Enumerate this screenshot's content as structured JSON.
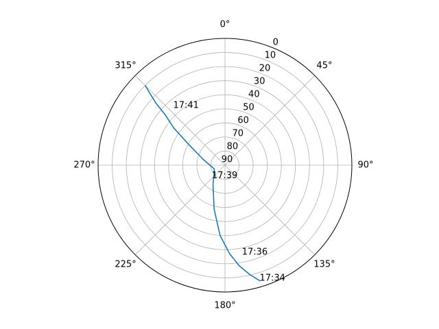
{
  "chart_data": {
    "type": "line",
    "projection": "polar",
    "theta_zero_location": "N",
    "theta_direction": "clockwise",
    "radial_axis": {
      "label": "",
      "inverted": true,
      "range": [
        0,
        90
      ],
      "ticks": [
        0,
        10,
        20,
        30,
        40,
        50,
        60,
        70,
        80,
        90
      ],
      "tick_labels": [
        "0",
        "10",
        "20",
        "30",
        "40",
        "50",
        "60",
        "70",
        "80",
        "90"
      ]
    },
    "angular_axis": {
      "ticks": [
        0,
        45,
        90,
        135,
        180,
        225,
        270,
        315
      ],
      "tick_labels": [
        "0°",
        "45°",
        "90°",
        "135°",
        "180°",
        "225°",
        "270°",
        "315°"
      ]
    },
    "grid": true,
    "series": [
      {
        "color": "#1f77b4",
        "points": [
          {
            "az": 163,
            "el": 4
          },
          {
            "az": 167,
            "el": 10
          },
          {
            "az": 172,
            "el": 18
          },
          {
            "az": 177,
            "el": 27
          },
          {
            "az": 184,
            "el": 40
          },
          {
            "az": 194,
            "el": 58
          },
          {
            "az": 212,
            "el": 74
          },
          {
            "az": 250,
            "el": 82
          },
          {
            "az": 285,
            "el": 74
          },
          {
            "az": 300,
            "el": 60
          },
          {
            "az": 306,
            "el": 45
          },
          {
            "az": 310,
            "el": 35
          },
          {
            "az": 312,
            "el": 24
          },
          {
            "az": 314,
            "el": 15
          },
          {
            "az": 315,
            "el": 10
          }
        ]
      }
    ],
    "annotations": [
      {
        "text": "17:34",
        "az": 163,
        "el": 6
      },
      {
        "text": "17:36",
        "az": 169,
        "el": 27
      },
      {
        "text": "17:39",
        "az": 231,
        "el": 78
      },
      {
        "text": "17:41",
        "az": 319,
        "el": 34
      }
    ]
  }
}
